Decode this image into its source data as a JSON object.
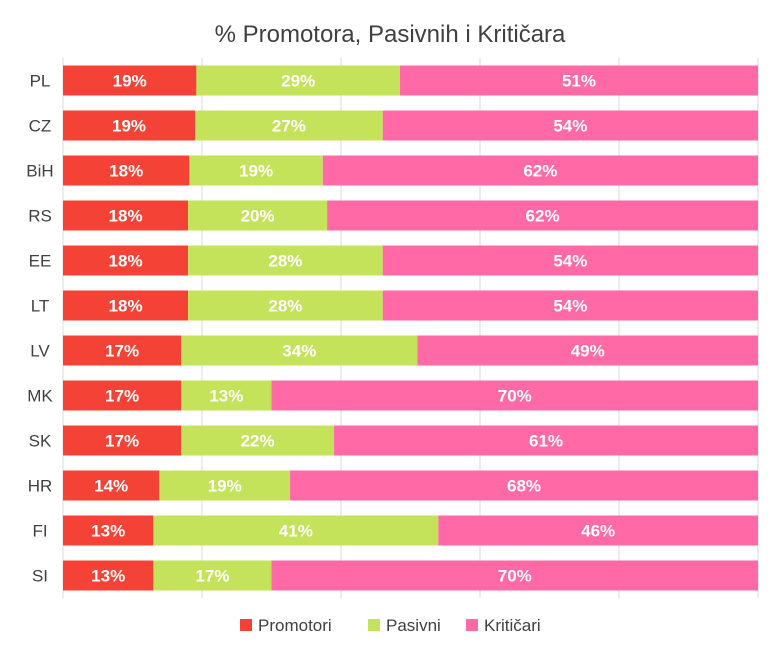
{
  "chart_data": {
    "type": "bar",
    "orientation": "horizontal-stacked-100",
    "title": "% Promotora, Pasivnih i Kritičara",
    "categories": [
      "PL",
      "CZ",
      "BiH",
      "RS",
      "EE",
      "LT",
      "LV",
      "MK",
      "SK",
      "HR",
      "FI",
      "SI"
    ],
    "series": [
      {
        "name": "Promotori",
        "color": "#f44336",
        "values": [
          19,
          19,
          18,
          18,
          18,
          18,
          17,
          17,
          17,
          14,
          13,
          13
        ],
        "labels": [
          "19%",
          "19%",
          "18%",
          "18%",
          "18%",
          "18%",
          "17%",
          "17%",
          "17%",
          "14%",
          "13%",
          "13%"
        ]
      },
      {
        "name": "Pasivni",
        "color": "#c5e35a",
        "values": [
          29,
          27,
          19,
          20,
          28,
          28,
          34,
          13,
          22,
          19,
          41,
          17
        ],
        "labels": [
          "29%",
          "27%",
          "19%",
          "20%",
          "28%",
          "28%",
          "34%",
          "13%",
          "22%",
          "19%",
          "41%",
          "17%"
        ]
      },
      {
        "name": "Kritičari",
        "color": "#ff69a5",
        "values": [
          51,
          54,
          62,
          62,
          54,
          54,
          49,
          70,
          61,
          68,
          46,
          70
        ],
        "labels": [
          "51%",
          "54%",
          "62%",
          "62%",
          "54%",
          "54%",
          "49%",
          "70%",
          "61%",
          "68%",
          "46%",
          "70%"
        ]
      }
    ],
    "legend": "bottom",
    "grid": true
  }
}
